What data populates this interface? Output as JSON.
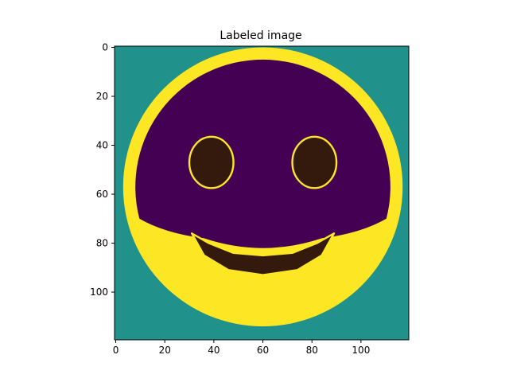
{
  "chart_data": {
    "type": "heatmap",
    "title": "Labeled image",
    "xlabel": "",
    "ylabel": "",
    "image_shape": [
      120,
      120
    ],
    "xlim": [
      -0.5,
      119.5
    ],
    "ylim": [
      119.5,
      -0.5
    ],
    "x_ticks": [
      0,
      20,
      40,
      60,
      80,
      100
    ],
    "y_ticks": [
      0,
      20,
      40,
      60,
      80,
      100
    ],
    "grid": false,
    "colormap": "viridis",
    "label_colors": {
      "background": "#21918c",
      "face": "#440154",
      "boundary": "#fde725",
      "features": "#331a0d"
    },
    "regions": {
      "face_circle": {
        "cx": 60,
        "cy": 57,
        "r": 57
      },
      "face_upper": {
        "cx": 60,
        "cy": 57,
        "r": 52,
        "cut_y": 70
      },
      "left_eye": {
        "cx": 39,
        "cy": 47,
        "rx": 9,
        "ry": 10.5
      },
      "right_eye": {
        "cx": 81,
        "cy": 47,
        "rx": 9,
        "ry": 10.5
      },
      "mouth": {
        "top_outline": [
          [
            31,
            76
          ],
          [
            38,
            80
          ],
          [
            48,
            84
          ],
          [
            60,
            85
          ],
          [
            72,
            84
          ],
          [
            82,
            80
          ],
          [
            89,
            76
          ]
        ],
        "bottom_outline": [
          [
            89,
            76
          ],
          [
            84,
            85
          ],
          [
            74,
            91
          ],
          [
            60,
            93
          ],
          [
            46,
            91
          ],
          [
            36,
            85
          ],
          [
            31,
            76
          ]
        ]
      }
    }
  }
}
